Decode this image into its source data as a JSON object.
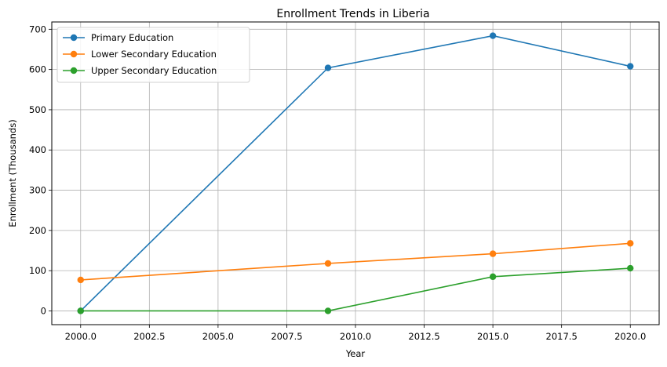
{
  "chart_data": {
    "type": "line",
    "title": "Enrollment Trends in Liberia",
    "xlabel": "Year",
    "ylabel": "Enrollment (Thousands)",
    "x": [
      2000,
      2009,
      2015,
      2020
    ],
    "xlim": [
      1998.95,
      2021.05
    ],
    "ylim": [
      -34.2,
      718.2
    ],
    "xticks": [
      2000.0,
      2002.5,
      2005.0,
      2007.5,
      2010.0,
      2012.5,
      2015.0,
      2017.5,
      2020.0
    ],
    "xtick_labels": [
      "2000.0",
      "2002.5",
      "2005.0",
      "2007.5",
      "2010.0",
      "2012.5",
      "2015.0",
      "2017.5",
      "2020.0"
    ],
    "yticks": [
      0,
      100,
      200,
      300,
      400,
      500,
      600,
      700
    ],
    "ytick_labels": [
      "0",
      "100",
      "200",
      "300",
      "400",
      "500",
      "600",
      "700"
    ],
    "grid": true,
    "legend_position": "top-left",
    "series": [
      {
        "name": "Primary Education",
        "color": "#1f77b4",
        "values": [
          0,
          604,
          684,
          608
        ]
      },
      {
        "name": "Lower Secondary Education",
        "color": "#ff7f0e",
        "values": [
          77,
          118,
          142,
          168
        ]
      },
      {
        "name": "Upper Secondary Education",
        "color": "#2ca02c",
        "values": [
          0,
          0,
          85,
          106
        ]
      }
    ]
  }
}
